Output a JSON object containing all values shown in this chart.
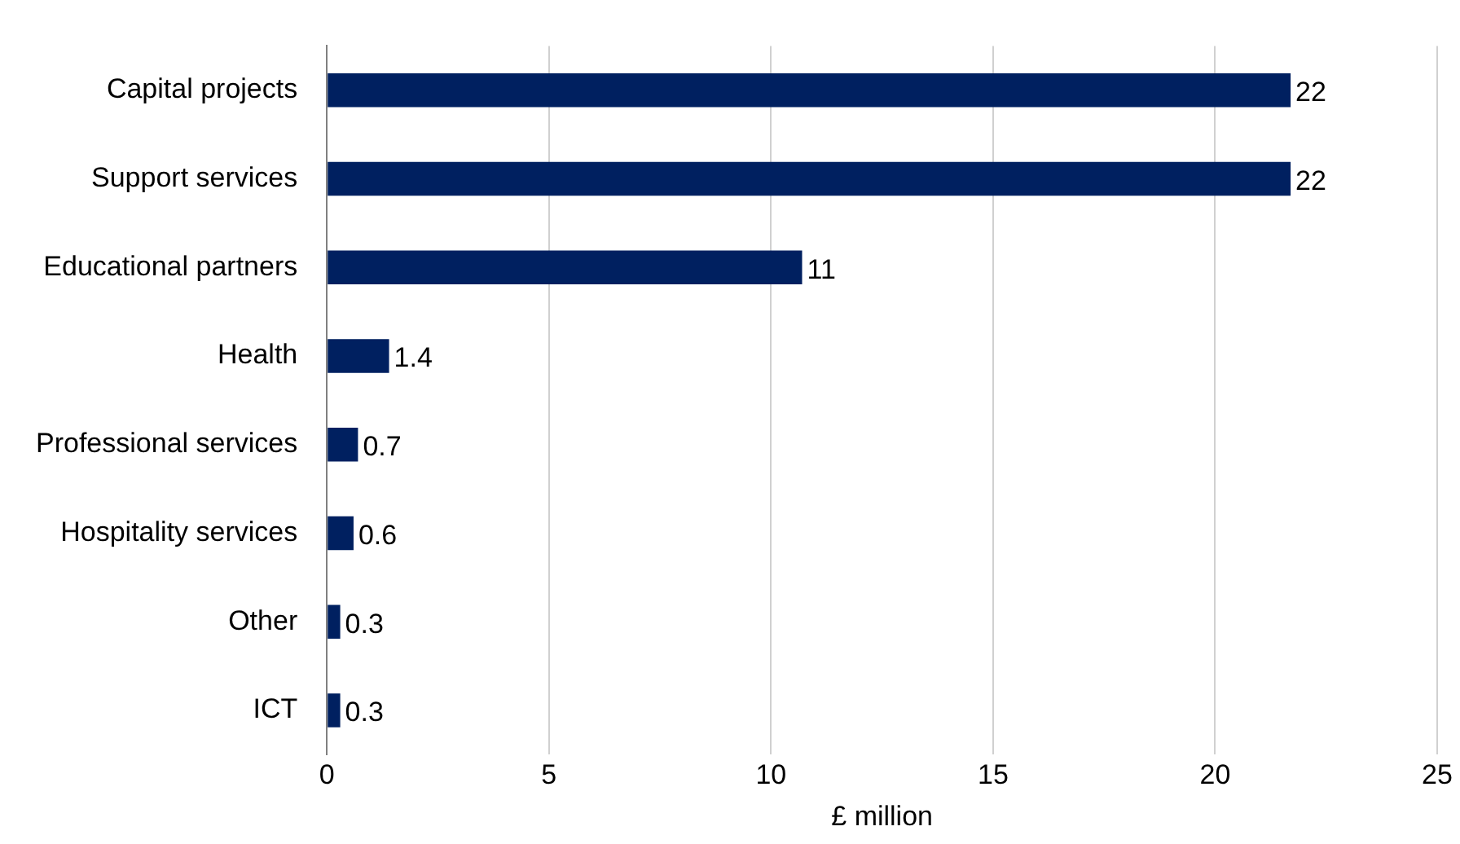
{
  "chart_data": {
    "type": "bar",
    "orientation": "horizontal",
    "xlabel": "£ million",
    "categories": [
      "Capital projects",
      "Support services",
      "Educational partners",
      "Health",
      "Professional services",
      "Hospitality services",
      "Other",
      "ICT"
    ],
    "values": [
      21.7,
      21.7,
      10.7,
      1.4,
      0.7,
      0.6,
      0.3,
      0.3
    ],
    "value_labels": [
      "22",
      "22",
      "11",
      "1.4",
      "0.7",
      "0.6",
      "0.3",
      "0.3"
    ],
    "color": "#002060",
    "xlim": [
      0,
      25
    ],
    "xticks": [
      0,
      5,
      10,
      15,
      20,
      25
    ],
    "grid": "x",
    "legend": false
  }
}
